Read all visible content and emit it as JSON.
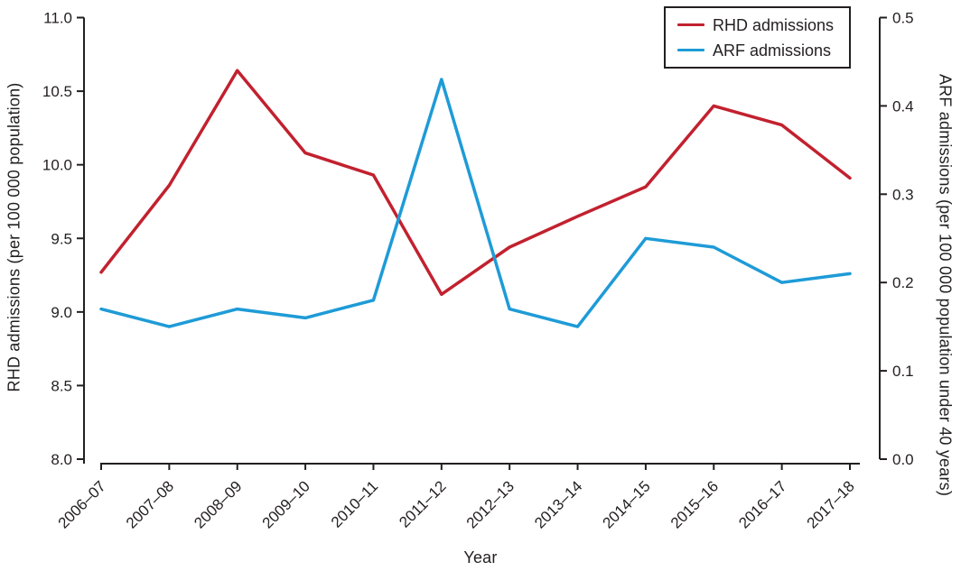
{
  "figure": {
    "background": "#ffffff",
    "text_color": "#231f20"
  },
  "legend": {
    "items": [
      {
        "label": "RHD admissions",
        "color": "#c2212f"
      },
      {
        "label": "ARF admissions",
        "color": "#1e9bd7"
      }
    ]
  },
  "chart_data": {
    "type": "line",
    "title": "",
    "xlabel": "Year",
    "grid": false,
    "legend_position": "top-right",
    "axis_color": "#231f20",
    "categories": [
      "2006–07",
      "2007–08",
      "2008–09",
      "2009–10",
      "2010–11",
      "2011–12",
      "2012–13",
      "2013–14",
      "2014–15",
      "2015–16",
      "2016–17",
      "2017–18"
    ],
    "series": [
      {
        "name": "RHD admissions",
        "axis": "left",
        "color": "#c2212f",
        "values": [
          9.27,
          9.86,
          10.64,
          10.08,
          9.93,
          9.12,
          9.44,
          9.65,
          9.85,
          10.4,
          10.27,
          9.91
        ]
      },
      {
        "name": "ARF admissions",
        "axis": "right",
        "color": "#1e9bd7",
        "values": [
          0.17,
          0.15,
          0.17,
          0.16,
          0.18,
          0.43,
          0.17,
          0.15,
          0.25,
          0.24,
          0.2,
          0.21
        ]
      }
    ],
    "left_axis": {
      "label": "RHD admissions (per 100 000 population)",
      "min": 8.0,
      "max": 11.0,
      "ticks": [
        8.0,
        8.5,
        9.0,
        9.5,
        10.0,
        10.5,
        11.0
      ],
      "tick_labels": [
        "8.0",
        "8.5",
        "9.0",
        "9.5",
        "10.0",
        "10.5",
        "11.0"
      ]
    },
    "right_axis": {
      "label": "ARF admissions (per 100 000 population under 40 years)",
      "min": 0.0,
      "max": 0.5,
      "ticks": [
        0.0,
        0.1,
        0.2,
        0.3,
        0.4,
        0.5
      ],
      "tick_labels": [
        "0.0",
        "0.1",
        "0.2",
        "0.3",
        "0.4",
        "0.5"
      ]
    }
  }
}
